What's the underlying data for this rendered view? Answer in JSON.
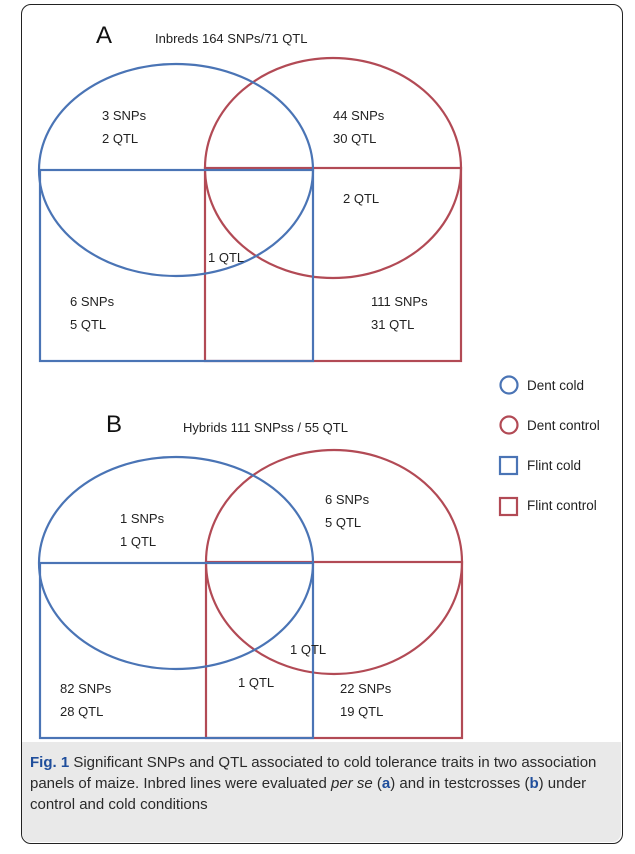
{
  "colors": {
    "blue": "#4a74b5",
    "red": "#b24a55"
  },
  "panel_a": {
    "letter": "A",
    "title": "Inbreds 164 SNPs/71 QTL",
    "regions": {
      "dent_cold_only": [
        "3 SNPs",
        "2 QTL"
      ],
      "dent_control_only": [
        "44 SNPs",
        "30 QTL"
      ],
      "dent_control_upper": "2 QTL",
      "center_overlap": "1 QTL",
      "flint_cold_only": [
        "6 SNPs",
        "5 QTL"
      ],
      "flint_control_only": [
        "111 SNPs",
        "31 QTL"
      ]
    }
  },
  "panel_b": {
    "letter": "B",
    "title": "Hybrids 111 SNPss / 55 QTL",
    "regions": {
      "dent_cold_only": [
        "1 SNPs",
        "1 QTL"
      ],
      "dent_control_only": [
        "6 SNPs",
        "5 QTL"
      ],
      "center_overlap": "1 QTL",
      "flint_overlap": "1 QTL",
      "flint_cold_only": [
        "82 SNPs",
        "28 QTL"
      ],
      "flint_control_only": [
        "22 SNPs",
        "19 QTL"
      ]
    }
  },
  "legend": [
    {
      "label": "Dent cold",
      "shape": "circle",
      "color": "blue"
    },
    {
      "label": "Dent control",
      "shape": "circle",
      "color": "red"
    },
    {
      "label": "Flint cold",
      "shape": "square",
      "color": "blue"
    },
    {
      "label": "Flint control",
      "shape": "square",
      "color": "red"
    }
  ],
  "caption": {
    "fig_label": "Fig. 1",
    "text_1": " Significant SNPs and QTL associated to cold tolerance traits in two association panels of maize. Inbred lines were evaluated ",
    "per_se": "per se",
    "text_2": " (",
    "a": "a",
    "text_3": ") and in testcrosses (",
    "b": "b",
    "text_4": ") under control and cold conditions"
  }
}
